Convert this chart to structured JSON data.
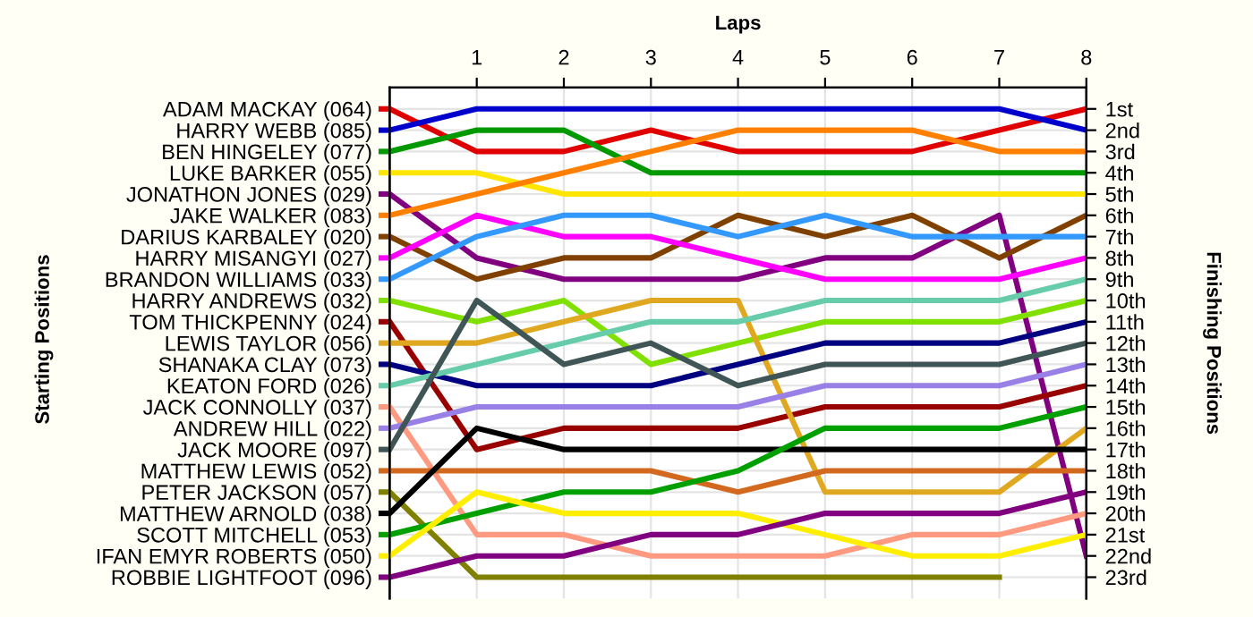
{
  "chart_data": {
    "type": "line",
    "xlabel": "Laps",
    "ylabel": "Finishing Positions",
    "annotations": [
      "Starting Positions"
    ],
    "x": [
      0,
      1,
      2,
      3,
      4,
      5,
      6,
      7,
      8
    ],
    "xlim": [
      0,
      8
    ],
    "xticks": [
      1,
      2,
      3,
      4,
      5,
      6,
      7,
      8
    ],
    "ylim": [
      24,
      0
    ],
    "yticks": [
      {
        "value": 1,
        "label": "1st"
      },
      {
        "value": 2,
        "label": "2nd"
      },
      {
        "value": 3,
        "label": "3rd"
      },
      {
        "value": 4,
        "label": "4th"
      },
      {
        "value": 5,
        "label": "5th"
      },
      {
        "value": 6,
        "label": "6th"
      },
      {
        "value": 7,
        "label": "7th"
      },
      {
        "value": 8,
        "label": "8th"
      },
      {
        "value": 9,
        "label": "9th"
      },
      {
        "value": 10,
        "label": "10th"
      },
      {
        "value": 11,
        "label": "11th"
      },
      {
        "value": 12,
        "label": "12th"
      },
      {
        "value": 13,
        "label": "13th"
      },
      {
        "value": 14,
        "label": "14th"
      },
      {
        "value": 15,
        "label": "15th"
      },
      {
        "value": 16,
        "label": "16th"
      },
      {
        "value": 17,
        "label": "17th"
      },
      {
        "value": 18,
        "label": "18th"
      },
      {
        "value": 19,
        "label": "19th"
      },
      {
        "value": 20,
        "label": "20th"
      },
      {
        "value": 21,
        "label": "21st"
      },
      {
        "value": 22,
        "label": "22nd"
      },
      {
        "value": 23,
        "label": "23rd"
      }
    ],
    "grid": true,
    "legend": "left",
    "marker": "none",
    "line_style": "solid",
    "series": [
      {
        "name": "ADAM MACKAY (064)",
        "color": "#e00000",
        "values": [
          1,
          3,
          3,
          2,
          3,
          3,
          3,
          2,
          1
        ]
      },
      {
        "name": "HARRY WEBB (085)",
        "color": "#0000cc",
        "values": [
          2,
          1,
          1,
          1,
          1,
          1,
          1,
          1,
          2
        ]
      },
      {
        "name": "BEN HINGELEY (077)",
        "color": "#009900",
        "values": [
          3,
          2,
          2,
          4,
          4,
          4,
          4,
          4,
          4
        ]
      },
      {
        "name": "LUKE BARKER (055)",
        "color": "#ffe600",
        "values": [
          4,
          4,
          5,
          5,
          5,
          5,
          5,
          5,
          5
        ]
      },
      {
        "name": "JONATHON JONES (029)",
        "color": "#800080",
        "values": [
          5,
          8,
          9,
          9,
          9,
          8,
          8,
          6,
          22
        ]
      },
      {
        "name": "JAKE WALKER (083)",
        "color": "#ff8000",
        "values": [
          6,
          5,
          4,
          3,
          2,
          2,
          2,
          3,
          3
        ]
      },
      {
        "name": "DARIUS KARBALEY (020)",
        "color": "#804000",
        "values": [
          7,
          9,
          8,
          8,
          6,
          7,
          6,
          8,
          6
        ]
      },
      {
        "name": "HARRY MISANGYI (027)",
        "color": "#ff00ff",
        "values": [
          8,
          6,
          7,
          7,
          8,
          9,
          9,
          9,
          8
        ]
      },
      {
        "name": "BRANDON WILLIAMS (033)",
        "color": "#3399ff",
        "values": [
          9,
          7,
          6,
          6,
          7,
          6,
          7,
          7,
          7
        ]
      },
      {
        "name": "HARRY ANDREWS (032)",
        "color": "#80e000",
        "values": [
          10,
          11,
          10,
          13,
          12,
          11,
          11,
          11,
          10
        ]
      },
      {
        "name": "TOM THICKPENNY (024)",
        "color": "#990000",
        "values": [
          11,
          17,
          16,
          16,
          16,
          15,
          15,
          15,
          14
        ]
      },
      {
        "name": "LEWIS TAYLOR (056)",
        "color": "#e0a820",
        "values": [
          12,
          12,
          11,
          10,
          10,
          19,
          19,
          19,
          16
        ]
      },
      {
        "name": "SHANAKA CLAY (073)",
        "color": "#000080",
        "values": [
          13,
          14,
          14,
          14,
          13,
          12,
          12,
          12,
          11
        ]
      },
      {
        "name": "KEATON FORD (026)",
        "color": "#66ccaa",
        "values": [
          14,
          13,
          12,
          11,
          11,
          10,
          10,
          10,
          9
        ]
      },
      {
        "name": "JACK CONNOLLY (037)",
        "color": "#ff9980",
        "values": [
          15,
          21,
          21,
          22,
          22,
          22,
          21,
          21,
          20
        ]
      },
      {
        "name": "ANDREW HILL (022)",
        "color": "#9980e6",
        "values": [
          16,
          15,
          15,
          15,
          15,
          14,
          14,
          14,
          13
        ]
      },
      {
        "name": "JACK MOORE (097)",
        "color": "#405555",
        "values": [
          17,
          10,
          13,
          12,
          14,
          13,
          13,
          13,
          12
        ]
      },
      {
        "name": "MATTHEW LEWIS (052)",
        "color": "#d2691e",
        "values": [
          18,
          18,
          18,
          18,
          19,
          18,
          18,
          18,
          18
        ]
      },
      {
        "name": "PETER JACKSON (057)",
        "color": "#808000",
        "values": [
          19,
          23,
          23,
          23,
          23,
          23,
          23,
          23,
          null
        ]
      },
      {
        "name": "MATTHEW ARNOLD (038)",
        "color": "#000000",
        "values": [
          20,
          16,
          17,
          17,
          17,
          17,
          17,
          17,
          17
        ]
      },
      {
        "name": "SCOTT MITCHELL (053)",
        "color": "#00a000",
        "values": [
          21,
          20,
          19,
          19,
          18,
          16,
          16,
          16,
          15
        ]
      },
      {
        "name": "IFAN EMYR ROBERTS (050)",
        "color": "#ffee00",
        "values": [
          22,
          19,
          20,
          20,
          20,
          21,
          22,
          22,
          21
        ]
      },
      {
        "name": "ROBBIE LIGHTFOOT (096)",
        "color": "#800080",
        "values": [
          23,
          22,
          22,
          21,
          21,
          20,
          20,
          20,
          19
        ]
      }
    ]
  }
}
